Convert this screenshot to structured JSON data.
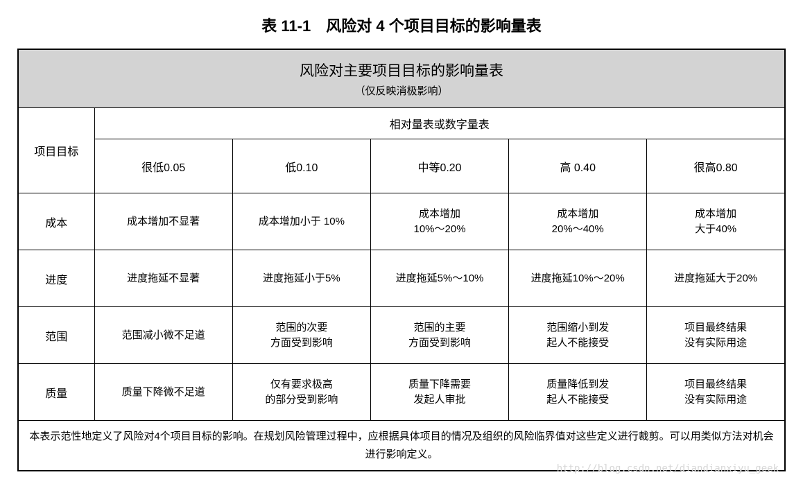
{
  "pageTitle": "表 11-1　风险对 4 个项目目标的影响量表",
  "tableHeader": {
    "title": "风险对主要项目目标的影响量表",
    "subtitle": "（仅反映消极影响）"
  },
  "rowHeaderLabel": "项目目标",
  "colGroupLabel": "相对量表或数字量表",
  "columns": [
    "很低0.05",
    "低0.10",
    "中等0.20",
    "高 0.40",
    "很高0.80"
  ],
  "rows": [
    {
      "label": "成本",
      "cells": [
        "成本增加不显著",
        "成本增加小于 10%",
        "成本增加\n10%～20%",
        "成本增加\n20%～40%",
        "成本增加\n大于40%"
      ]
    },
    {
      "label": "进度",
      "cells": [
        "进度拖延不显著",
        "进度拖延小于5%",
        "进度拖延5%～10%",
        "进度拖延10%～20%",
        "进度拖延大于20%"
      ]
    },
    {
      "label": "范围",
      "cells": [
        "范围减小微不足道",
        "范围的次要\n方面受到影响",
        "范围的主要\n方面受到影响",
        "范围缩小到发\n起人不能接受",
        "项目最终结果\n没有实际用途"
      ]
    },
    {
      "label": "质量",
      "cells": [
        "质量下降微不足道",
        "仅有要求极高\n的部分受到影响",
        "质量下降需要\n发起人审批",
        "质量降低到发\n起人不能接受",
        "项目最终结果\n没有实际用途"
      ]
    }
  ],
  "footerNote": "本表示范性地定义了风险对4个项目目标的影响。在规划风险管理过程中，应根据具体项目的情况及组织的风险临界值对这些定义进行裁剪。可以用类似方法对机会进行影响定义。",
  "watermark": "http://blog.csdn.net/diandianxiyu_geek",
  "style": {
    "backgroundColor": "#ffffff",
    "borderColor": "#000000",
    "headerBg": "#d3d3d3",
    "textColor": "#000000",
    "watermarkColor": "#d6d6d6",
    "titleFontSize": 22,
    "headerTitleFontSize": 21,
    "headerSubtitleFontSize": 15,
    "cellFontSize": 15,
    "labelFontSize": 16,
    "footerFontSize": 15,
    "colWidths": {
      "first": 110,
      "rest": 199
    },
    "rowHeights": {
      "header": 64,
      "colLabels": 78,
      "dataRow": 82
    }
  }
}
